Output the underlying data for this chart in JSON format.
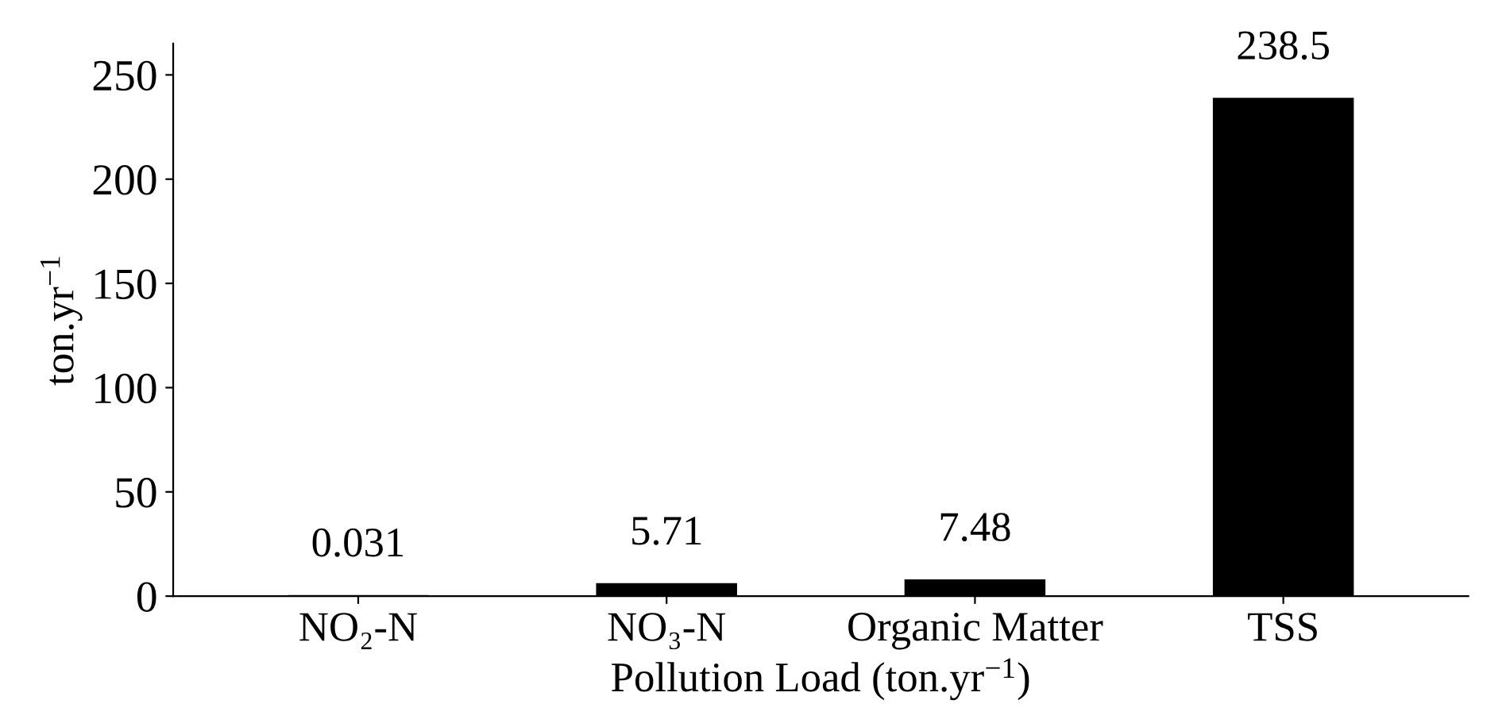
{
  "chart_data": {
    "type": "bar",
    "xlabel": "Pollution Load (ton.yr$^{−1}$)",
    "ylabel": "ton.yr$^{−1}$",
    "categories": [
      "NO₂-N",
      "NO₃-N",
      "Organic Matter",
      "TSS"
    ],
    "values": [
      0.031,
      5.71,
      7.48,
      238.5
    ],
    "color": "#000000",
    "ylim": [
      0,
      265
    ],
    "yticks": [
      0,
      50,
      100,
      150,
      200,
      250
    ],
    "data_labels": true,
    "grid": false,
    "legend": false
  }
}
